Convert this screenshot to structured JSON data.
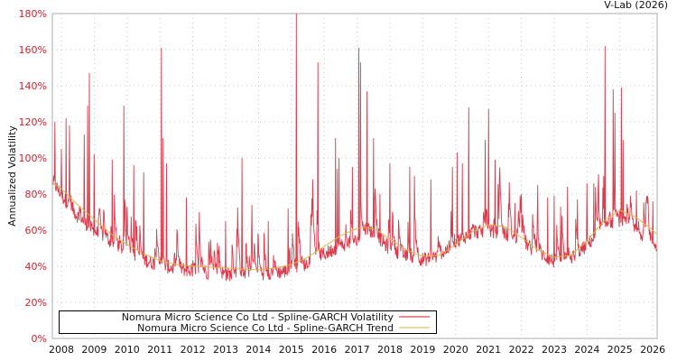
{
  "header": {
    "credit": "V-Lab (2026)"
  },
  "colors": {
    "volatility": "#d7192d",
    "trend": "#d9b64a",
    "ytick": "#d0202e",
    "grid": "#c8c8c8"
  },
  "legend": {
    "items": [
      {
        "label": "Nomura Micro Science Co Ltd - Spline-GARCH Volatility",
        "color": "#d7192d"
      },
      {
        "label": "Nomura Micro Science Co Ltd - Spline-GARCH Trend",
        "color": "#d9b64a"
      }
    ]
  },
  "chart_data": {
    "type": "line",
    "title": "",
    "xlabel": "",
    "ylabel": "Annualized Volatility",
    "ylim": [
      0,
      180
    ],
    "xlim": [
      2007.75,
      2026.15
    ],
    "grid": true,
    "legend_position": "bottom-left inside",
    "y_ticks": [
      "0%",
      "20%",
      "40%",
      "60%",
      "80%",
      "100%",
      "120%",
      "140%",
      "160%",
      "180%"
    ],
    "x_ticks": [
      "2008",
      "2009",
      "2010",
      "2011",
      "2012",
      "2013",
      "2014",
      "2015",
      "2016",
      "2017",
      "2018",
      "2019",
      "2020",
      "2021",
      "2022",
      "2023",
      "2024",
      "2025",
      "2026"
    ],
    "series": [
      {
        "name": "Nomura Micro Science Co Ltd - Spline-GARCH Volatility",
        "baseline": [
          [
            2007.75,
            85
          ],
          [
            2008.0,
            78
          ],
          [
            2008.5,
            66
          ],
          [
            2009.0,
            58
          ],
          [
            2009.5,
            52
          ],
          [
            2010.0,
            46
          ],
          [
            2010.5,
            42
          ],
          [
            2011.0,
            39
          ],
          [
            2011.5,
            37
          ],
          [
            2012.0,
            36
          ],
          [
            2012.5,
            35
          ],
          [
            2013.0,
            34
          ],
          [
            2013.5,
            34
          ],
          [
            2014.0,
            34
          ],
          [
            2014.5,
            35
          ],
          [
            2015.0,
            36
          ],
          [
            2015.5,
            40
          ],
          [
            2016.0,
            45
          ],
          [
            2016.5,
            50
          ],
          [
            2017.0,
            52
          ],
          [
            2017.3,
            60
          ],
          [
            2017.6,
            55
          ],
          [
            2018.0,
            48
          ],
          [
            2018.5,
            44
          ],
          [
            2019.0,
            42
          ],
          [
            2019.5,
            44
          ],
          [
            2020.0,
            52
          ],
          [
            2020.5,
            57
          ],
          [
            2021.0,
            58
          ],
          [
            2021.5,
            56
          ],
          [
            2022.0,
            52
          ],
          [
            2022.5,
            46
          ],
          [
            2023.0,
            41
          ],
          [
            2023.5,
            42
          ],
          [
            2024.0,
            50
          ],
          [
            2024.5,
            60
          ],
          [
            2025.0,
            64
          ],
          [
            2025.5,
            58
          ],
          [
            2026.0,
            52
          ],
          [
            2026.1,
            50
          ]
        ],
        "spikes": [
          [
            2007.8,
            120
          ],
          [
            2008.0,
            105
          ],
          [
            2008.15,
            122
          ],
          [
            2008.25,
            118
          ],
          [
            2008.7,
            113
          ],
          [
            2008.8,
            129
          ],
          [
            2008.85,
            147
          ],
          [
            2009.0,
            102
          ],
          [
            2009.55,
            99
          ],
          [
            2009.9,
            129
          ],
          [
            2010.2,
            96
          ],
          [
            2010.5,
            92
          ],
          [
            2011.05,
            161
          ],
          [
            2011.1,
            111
          ],
          [
            2011.2,
            97
          ],
          [
            2011.8,
            78
          ],
          [
            2012.2,
            70
          ],
          [
            2013.0,
            65
          ],
          [
            2013.5,
            100
          ],
          [
            2013.8,
            74
          ],
          [
            2014.3,
            65
          ],
          [
            2014.9,
            72
          ],
          [
            2015.15,
            180
          ],
          [
            2015.8,
            153
          ],
          [
            2016.35,
            111
          ],
          [
            2016.4,
            94
          ],
          [
            2016.45,
            100
          ],
          [
            2016.85,
            95
          ],
          [
            2017.05,
            161
          ],
          [
            2017.1,
            153
          ],
          [
            2017.3,
            137
          ],
          [
            2017.5,
            111
          ],
          [
            2017.7,
            80
          ],
          [
            2018.0,
            97
          ],
          [
            2018.6,
            95
          ],
          [
            2018.75,
            90
          ],
          [
            2019.25,
            88
          ],
          [
            2019.9,
            95
          ],
          [
            2020.05,
            103
          ],
          [
            2020.2,
            97
          ],
          [
            2020.4,
            128
          ],
          [
            2020.9,
            110
          ],
          [
            2021.0,
            127
          ],
          [
            2021.2,
            99
          ],
          [
            2021.8,
            75
          ],
          [
            2022.0,
            80
          ],
          [
            2022.5,
            85
          ],
          [
            2022.8,
            78
          ],
          [
            2023.0,
            79
          ],
          [
            2023.2,
            73
          ],
          [
            2023.4,
            84
          ],
          [
            2023.7,
            77
          ],
          [
            2024.0,
            86
          ],
          [
            2024.2,
            86
          ],
          [
            2024.35,
            91
          ],
          [
            2024.5,
            90
          ],
          [
            2024.55,
            162
          ],
          [
            2024.8,
            138
          ],
          [
            2024.85,
            125
          ],
          [
            2025.05,
            139
          ],
          [
            2025.1,
            110
          ],
          [
            2025.3,
            70
          ],
          [
            2025.5,
            82
          ],
          [
            2025.8,
            77
          ],
          [
            2026.0,
            76
          ]
        ]
      },
      {
        "name": "Nomura Micro Science Co Ltd - Spline-GARCH Trend",
        "values": [
          [
            2007.75,
            86
          ],
          [
            2008.0,
            83
          ],
          [
            2008.5,
            74
          ],
          [
            2009.0,
            66
          ],
          [
            2009.5,
            58
          ],
          [
            2010.0,
            52
          ],
          [
            2010.5,
            47
          ],
          [
            2011.0,
            43
          ],
          [
            2011.5,
            41
          ],
          [
            2012.0,
            40
          ],
          [
            2012.5,
            39.5
          ],
          [
            2013.0,
            39
          ],
          [
            2013.5,
            38.5
          ],
          [
            2014.0,
            38
          ],
          [
            2014.5,
            39
          ],
          [
            2015.0,
            41
          ],
          [
            2015.5,
            45
          ],
          [
            2016.0,
            51
          ],
          [
            2016.5,
            57
          ],
          [
            2017.0,
            61
          ],
          [
            2017.3,
            61.5
          ],
          [
            2017.6,
            60
          ],
          [
            2018.0,
            55
          ],
          [
            2018.5,
            49
          ],
          [
            2019.0,
            45.5
          ],
          [
            2019.5,
            46
          ],
          [
            2020.0,
            52
          ],
          [
            2020.5,
            59
          ],
          [
            2021.0,
            63
          ],
          [
            2021.5,
            62
          ],
          [
            2022.0,
            56
          ],
          [
            2022.5,
            49
          ],
          [
            2023.0,
            45
          ],
          [
            2023.5,
            46
          ],
          [
            2024.0,
            54
          ],
          [
            2024.5,
            65
          ],
          [
            2025.0,
            71
          ],
          [
            2025.5,
            67
          ],
          [
            2026.0,
            60
          ],
          [
            2026.1,
            58
          ]
        ]
      }
    ]
  }
}
